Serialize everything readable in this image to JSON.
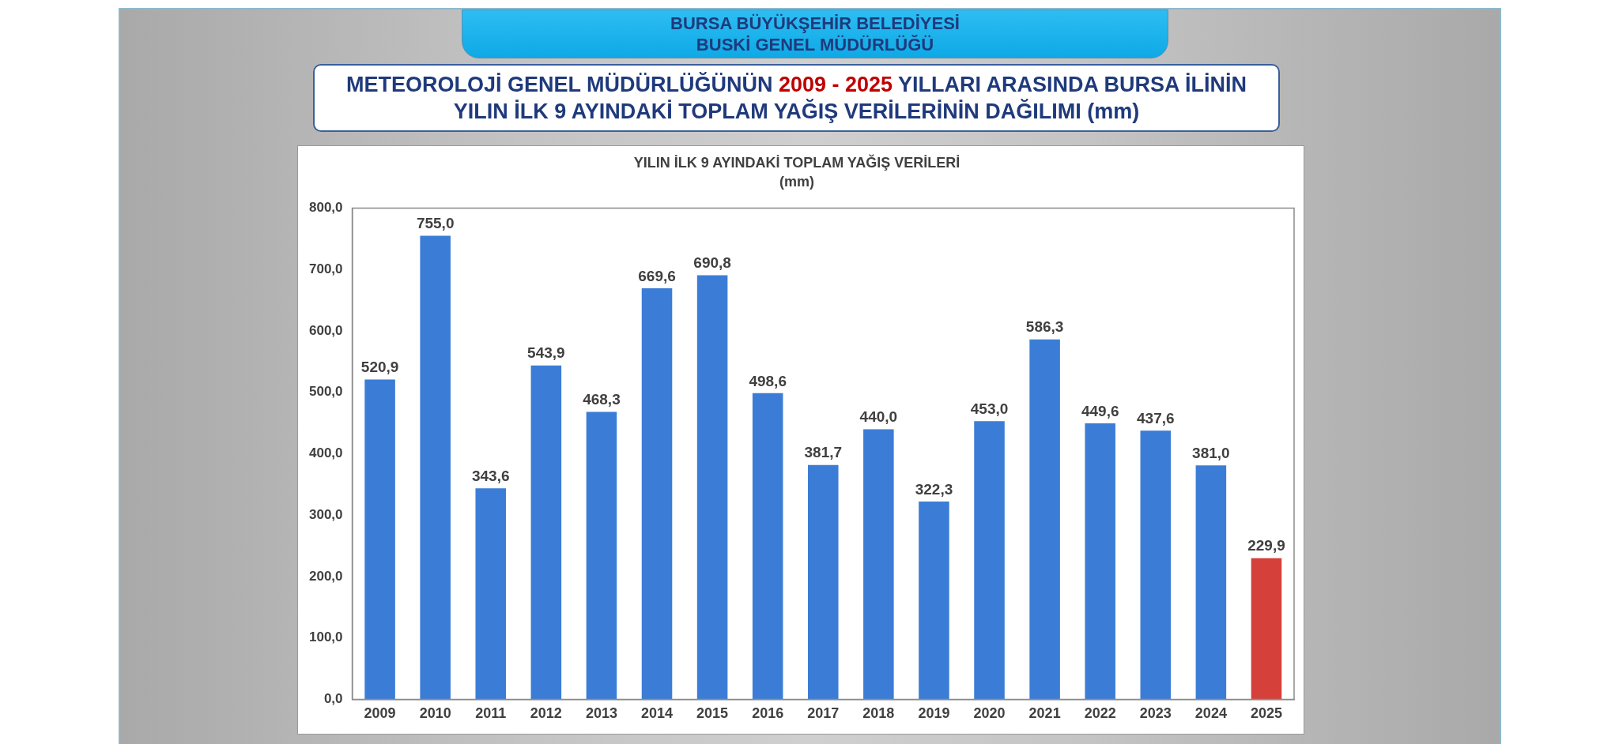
{
  "chart_data": {
    "type": "bar",
    "title": "METEOROLOJİ GENEL MÜDÜRLÜĞÜNÜN 2009 - 2025 YILLARI ARASINDA BURSA İLİNİN\nYILIN İLK 9 AYINDAKİ TOPLAM YAĞIŞ VERİLERİNİN DAĞILIMI (mm)",
    "subtitle": "YILIN İLK 9 AYINDAKİ TOPLAM YAĞIŞ VERİLERİ\n(mm)",
    "annotations": [
      "BURSA BÜYÜKŞEHİR BELEDİYESİ",
      "BUSKİ GENEL MÜDÜRLÜĞÜ"
    ],
    "categories": [
      "2009",
      "2010",
      "2011",
      "2012",
      "2013",
      "2014",
      "2015",
      "2016",
      "2017",
      "2018",
      "2019",
      "2020",
      "2021",
      "2022",
      "2023",
      "2024",
      "2025"
    ],
    "values": [
      520.9,
      755.0,
      343.6,
      543.9,
      468.3,
      669.6,
      690.8,
      498.6,
      381.7,
      440.0,
      322.3,
      453.0,
      586.3,
      449.6,
      437.6,
      381.0,
      229.9
    ],
    "value_labels": [
      "520,9",
      "755,0",
      "343,6",
      "543,9",
      "468,3",
      "669,6",
      "690,8",
      "498,6",
      "381,7",
      "440,0",
      "322,3",
      "453,0",
      "586,3",
      "449,6",
      "437,6",
      "381,0",
      "229,9"
    ],
    "colors": [
      "#3b7dd6",
      "#3b7dd6",
      "#3b7dd6",
      "#3b7dd6",
      "#3b7dd6",
      "#3b7dd6",
      "#3b7dd6",
      "#3b7dd6",
      "#3b7dd6",
      "#3b7dd6",
      "#3b7dd6",
      "#3b7dd6",
      "#3b7dd6",
      "#3b7dd6",
      "#3b7dd6",
      "#3b7dd6",
      "#d6403a"
    ],
    "ylim": [
      0,
      800
    ],
    "yticks": [
      {
        "value": 0,
        "label": "0,0"
      },
      {
        "value": 100,
        "label": "100,0"
      },
      {
        "value": 200,
        "label": "200,0"
      },
      {
        "value": 300,
        "label": "300,0"
      },
      {
        "value": 400,
        "label": "400,0"
      },
      {
        "value": 500,
        "label": "500,0"
      },
      {
        "value": 600,
        "label": "600,0"
      },
      {
        "value": 700,
        "label": "700,0"
      },
      {
        "value": 800,
        "label": "800,0"
      }
    ]
  }
}
